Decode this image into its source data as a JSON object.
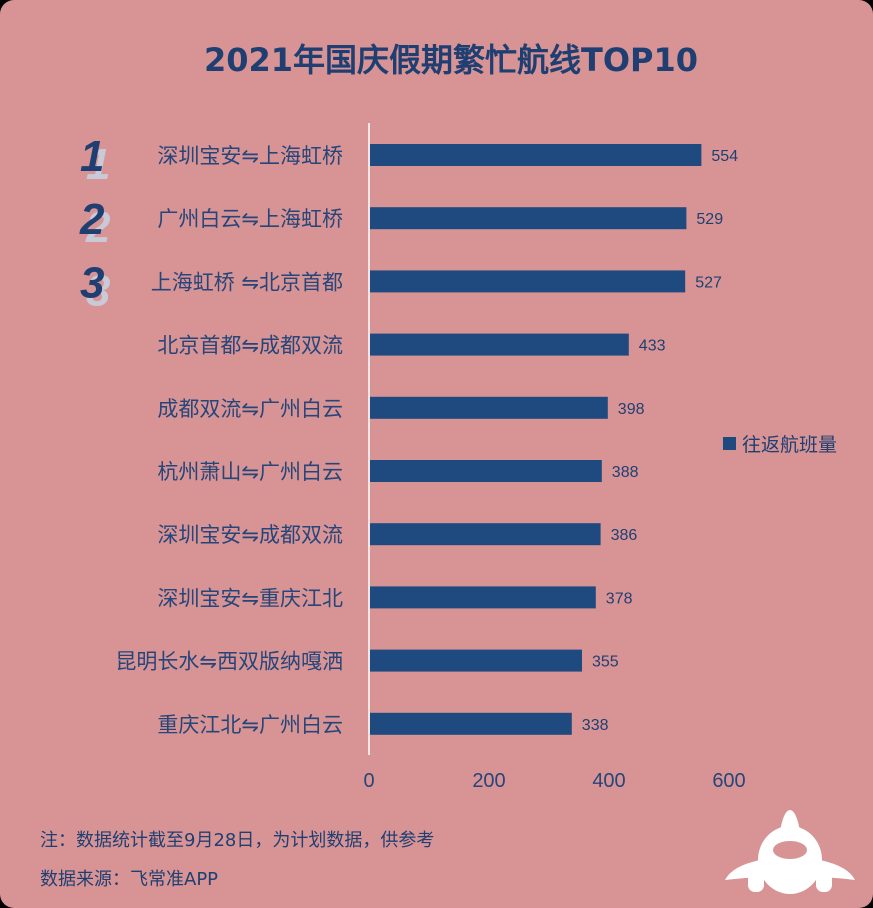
{
  "colors": {
    "background": "#d89494",
    "bar": "#1f4a80",
    "text": "#1f3f73",
    "axis": "#f3e6e6",
    "rank_shadow": "#c9c9d8",
    "plane": "#ffffff"
  },
  "chart_data": {
    "type": "bar",
    "orientation": "horizontal",
    "title": "2021年国庆假期繁忙航线TOP10",
    "categories": [
      "深圳宝安⇋上海虹桥",
      "广州白云⇋上海虹桥",
      "上海虹桥 ⇋北京首都",
      "北京首都⇋成都双流",
      "成都双流⇋广州白云",
      "杭州萧山⇋广州白云",
      "深圳宝安⇋成都双流",
      "深圳宝安⇋重庆江北",
      "昆明长水⇋西双版纳嘎洒",
      "重庆江北⇋广州白云"
    ],
    "ranks": [
      "1",
      "2",
      "3"
    ],
    "series": [
      {
        "name": "往返航班量",
        "values": [
          554,
          529,
          527,
          433,
          398,
          388,
          386,
          378,
          355,
          338
        ],
        "labels": [
          "554",
          "529",
          "527",
          "433",
          "398",
          "388",
          "386",
          "378",
          "355",
          "338"
        ]
      }
    ],
    "xlim": [
      0,
      600
    ],
    "xticks": [
      0,
      200,
      400,
      600
    ],
    "xtick_labels": [
      "0",
      "200",
      "400",
      "600"
    ],
    "grid": false,
    "legend_position": "right"
  },
  "notes": {
    "line1": "注：数据统计截至9月28日，为计划数据，供参考",
    "line2": "数据来源：飞常准APP"
  },
  "icons": {
    "corner": "airplane-icon"
  }
}
